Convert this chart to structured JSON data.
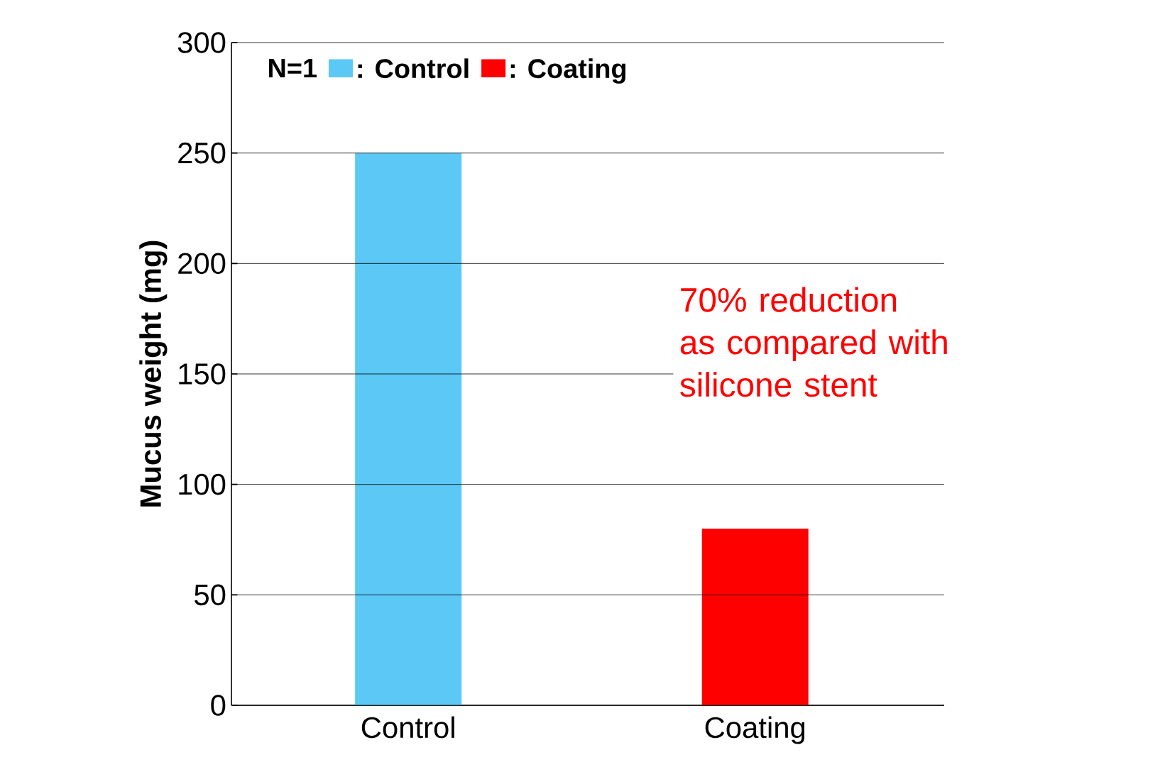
{
  "chart_data": {
    "type": "bar",
    "ylabel": "Mucus weight (mg)",
    "legend_title": "N=1",
    "categories": [
      "Control",
      "Coating"
    ],
    "series": [
      {
        "name": ": Control",
        "color": "#5bc8f5",
        "values": [
          250,
          null
        ]
      },
      {
        "name": ": Coating",
        "color": "#ff0000",
        "values": [
          null,
          80
        ]
      }
    ],
    "ylim": [
      0,
      300
    ],
    "yticks": [
      0,
      50,
      100,
      150,
      200,
      250,
      300
    ],
    "grid": "y",
    "legend": "top left",
    "annotations": [
      "70% reduction\nas compared with\nsilicone stent"
    ]
  }
}
